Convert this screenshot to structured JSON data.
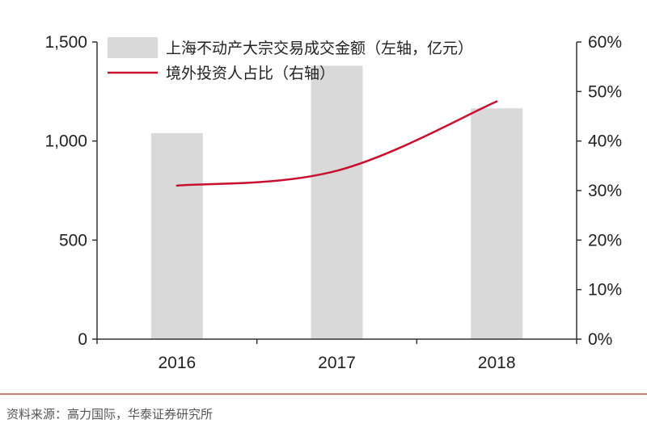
{
  "chart_data": {
    "type": "bar+line",
    "categories": [
      "2016",
      "2017",
      "2018"
    ],
    "series": [
      {
        "name": "上海不动产大宗交易成交金额（左轴，亿元）",
        "kind": "bar",
        "axis": "left",
        "values": [
          1040,
          1380,
          1165
        ],
        "color": "#d9d9d9"
      },
      {
        "name": "境外投资人占比（右轴）",
        "kind": "line",
        "axis": "right",
        "values": [
          31,
          34,
          48
        ],
        "color": "#c8102e"
      }
    ],
    "left_axis": {
      "ylim": [
        0,
        1500
      ],
      "ticks": [
        0,
        500,
        1000,
        1500
      ],
      "tick_labels": [
        "0",
        "500",
        "1,000",
        "1,500"
      ]
    },
    "right_axis": {
      "ylim": [
        0,
        60
      ],
      "ticks": [
        0,
        10,
        20,
        30,
        40,
        50,
        60
      ],
      "tick_labels": [
        "0%",
        "10%",
        "20%",
        "30%",
        "40%",
        "50%",
        "60%"
      ]
    },
    "x_tick_labels": [
      "2016",
      "2017",
      "2018"
    ],
    "grid": false,
    "legend_position": "top"
  },
  "source_note": "资料来源：高力国际，华泰证券研究所",
  "colors": {
    "axis": "#333333",
    "divider": "#c0504d"
  }
}
